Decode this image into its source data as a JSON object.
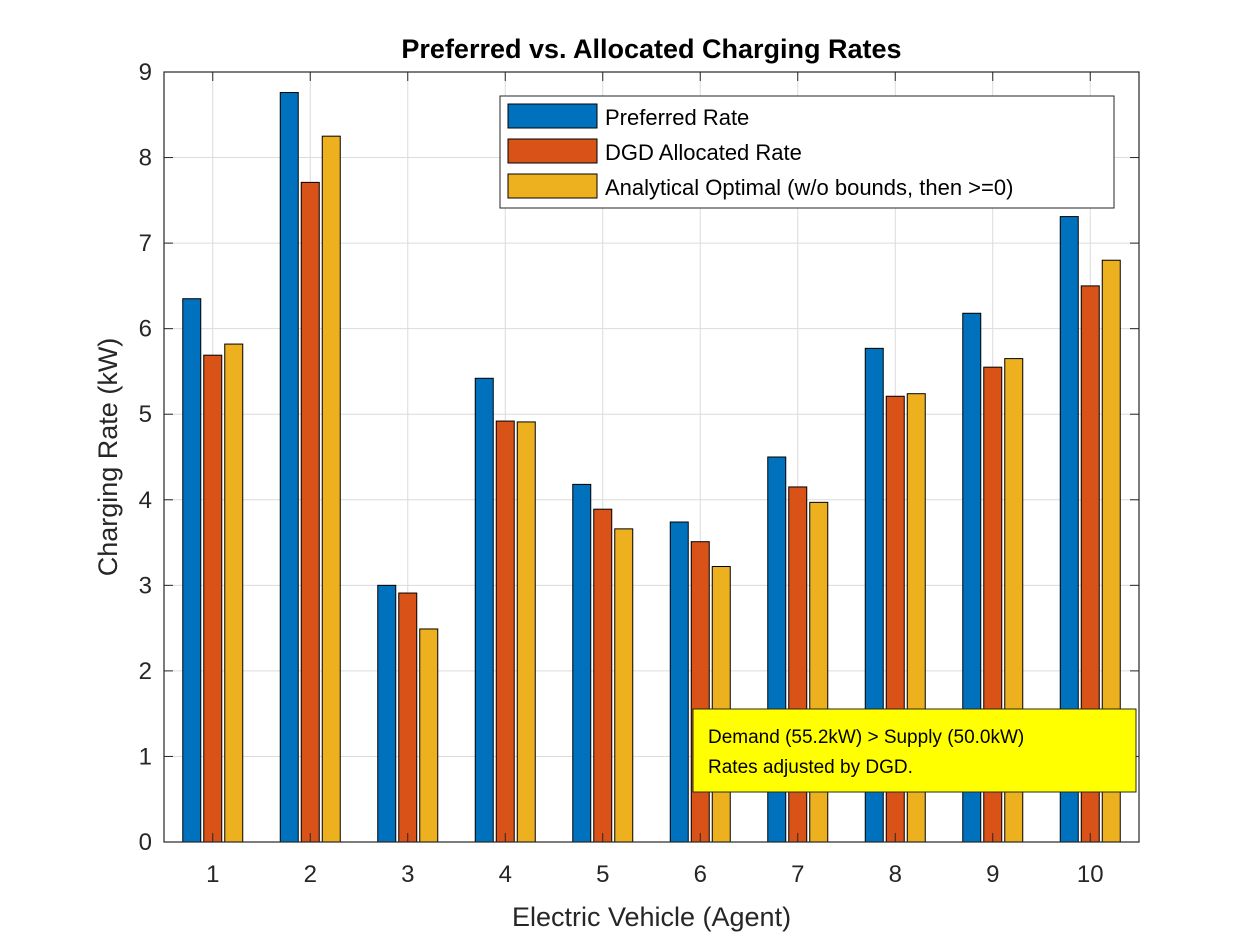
{
  "chart_data": {
    "type": "bar",
    "title": "Preferred vs. Allocated Charging Rates",
    "xlabel": "Electric Vehicle (Agent)",
    "ylabel": "Charging Rate (kW)",
    "ylim": [
      0,
      9
    ],
    "yticks": [
      "0",
      "1",
      "2",
      "3",
      "4",
      "5",
      "6",
      "7",
      "8",
      "9"
    ],
    "categories": [
      "1",
      "2",
      "3",
      "4",
      "5",
      "6",
      "7",
      "8",
      "9",
      "10"
    ],
    "grid": true,
    "legend_position": "top-right",
    "series": [
      {
        "name": "Preferred Rate",
        "color": "#0072BD",
        "values": [
          6.35,
          8.76,
          3.0,
          5.42,
          4.18,
          3.74,
          4.5,
          5.77,
          6.18,
          7.31
        ]
      },
      {
        "name": "DGD Allocated Rate",
        "color": "#D95319",
        "values": [
          5.69,
          7.71,
          2.91,
          4.92,
          3.89,
          3.51,
          4.15,
          5.21,
          5.55,
          6.5
        ]
      },
      {
        "name": "Analytical Optimal (w/o bounds, then >=0)",
        "color": "#EDB120",
        "values": [
          5.82,
          8.25,
          2.49,
          4.91,
          3.66,
          3.22,
          3.97,
          5.24,
          5.65,
          6.8
        ]
      }
    ],
    "annotation": {
      "lines": [
        "Demand (55.2kW) > Supply (50.0kW)",
        "Rates adjusted by DGD."
      ],
      "background": "#FFFF00"
    }
  }
}
